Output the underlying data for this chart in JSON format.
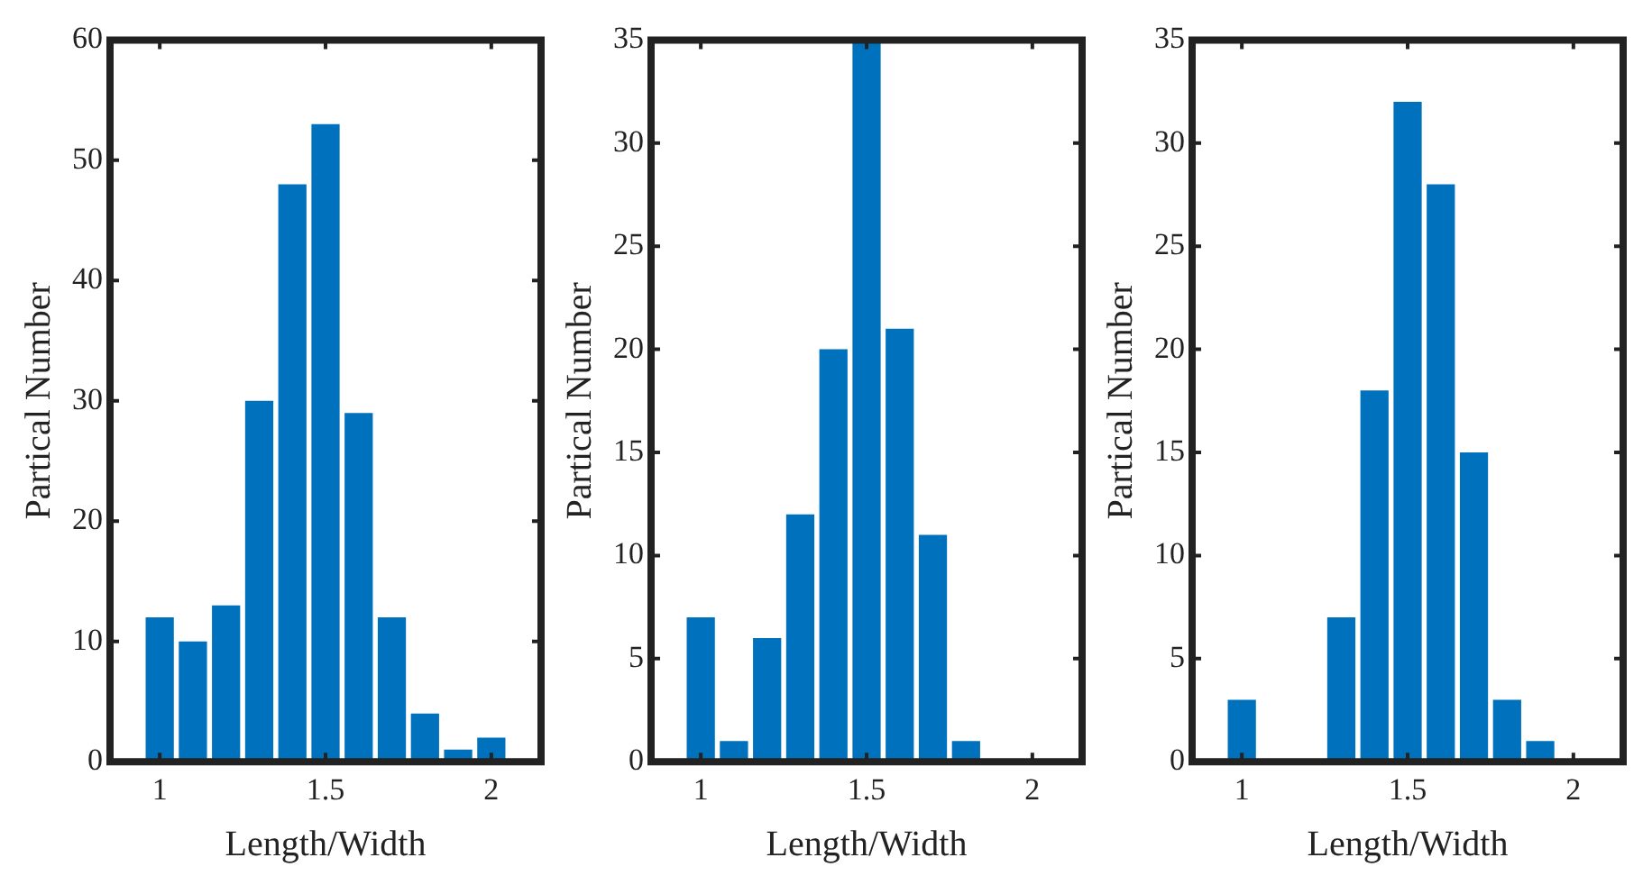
{
  "chart_data": [
    {
      "type": "histogram",
      "xlabel": "Length/Width",
      "ylabel": "Partical Number",
      "bins": [
        0.95,
        1.05,
        1.15,
        1.25,
        1.35,
        1.45,
        1.55,
        1.65,
        1.75,
        1.85,
        1.95,
        2.05
      ],
      "values": [
        12,
        10,
        13,
        30,
        48,
        53,
        29,
        12,
        4,
        1,
        2
      ],
      "color": "#0072bd",
      "xlim": [
        0.85,
        2.15
      ],
      "xticks": [
        1,
        1.5,
        2
      ],
      "ylim": [
        0,
        60
      ],
      "yticks": [
        0,
        10,
        20,
        30,
        40,
        50,
        60
      ]
    },
    {
      "type": "histogram",
      "xlabel": "Length/Width",
      "ylabel": "Partical Number",
      "bins": [
        0.95,
        1.05,
        1.15,
        1.25,
        1.35,
        1.45,
        1.55,
        1.65,
        1.75,
        1.85
      ],
      "values": [
        7,
        1,
        6,
        12,
        20,
        35,
        21,
        11,
        1
      ],
      "color": "#0072bd",
      "xlim": [
        0.85,
        2.15
      ],
      "xticks": [
        1,
        1.5,
        2
      ],
      "ylim": [
        0,
        35
      ],
      "yticks": [
        0,
        5,
        10,
        15,
        20,
        25,
        30,
        35
      ]
    },
    {
      "type": "histogram",
      "xlabel": "Length/Width",
      "ylabel": "Partical Number",
      "bins": [
        0.95,
        1.05,
        1.15,
        1.25,
        1.35,
        1.45,
        1.55,
        1.65,
        1.75,
        1.85,
        1.95
      ],
      "values": [
        3,
        0,
        0,
        7,
        18,
        32,
        28,
        15,
        3,
        1
      ],
      "color": "#0072bd",
      "xlim": [
        0.85,
        2.15
      ],
      "xticks": [
        1,
        1.5,
        2
      ],
      "ylim": [
        0,
        35
      ],
      "yticks": [
        0,
        5,
        10,
        15,
        20,
        25,
        30,
        35
      ]
    }
  ]
}
